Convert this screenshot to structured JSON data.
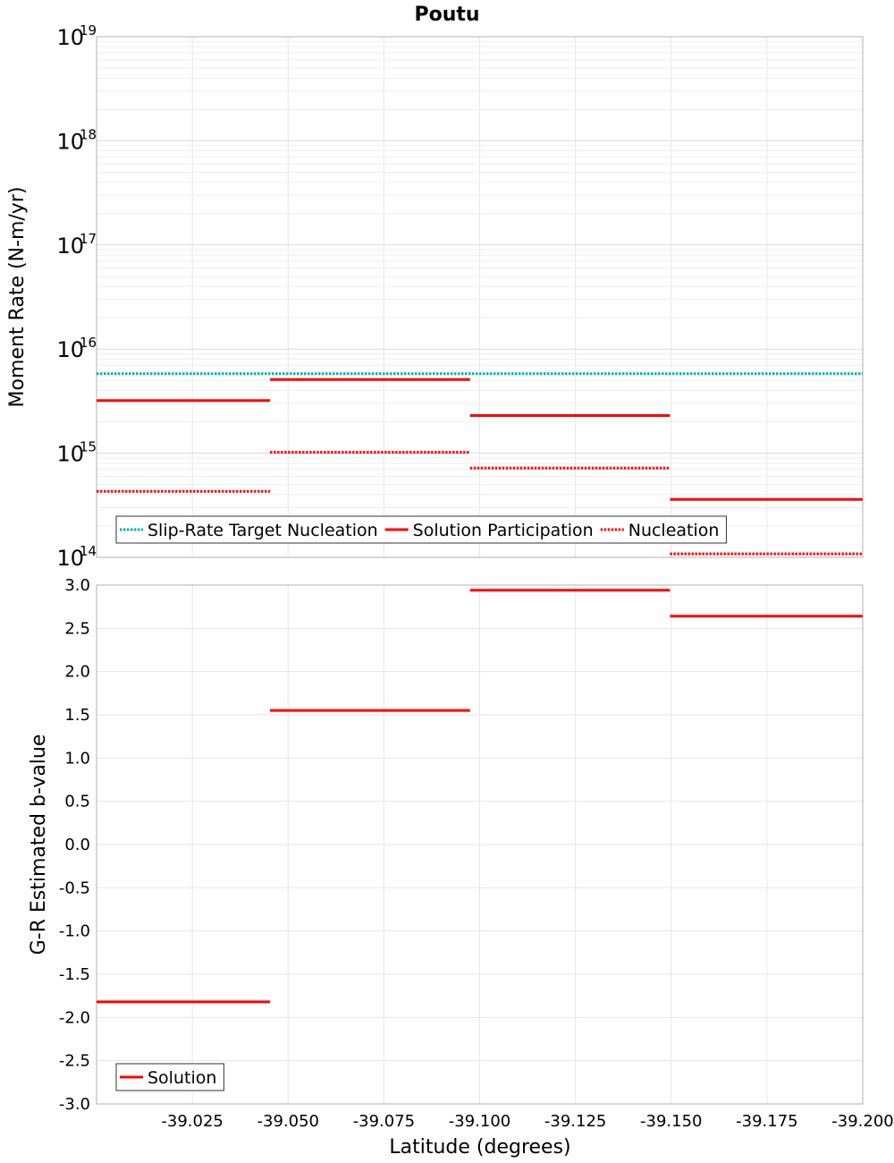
{
  "chart_data": {
    "title": "Poutu",
    "xlabel": "Latitude (degrees)",
    "xlim": [
      -39.0,
      -39.2
    ],
    "xticks": [
      -39.025,
      -39.05,
      -39.075,
      -39.1,
      -39.125,
      -39.15,
      -39.175,
      -39.2
    ],
    "xtick_labels": [
      "-39.025",
      "-39.050",
      "-39.075",
      "-39.100",
      "-39.125",
      "-39.150",
      "-39.175",
      "-39.200"
    ],
    "panels": [
      {
        "type": "line",
        "yscale": "log",
        "ylabel": "Moment Rate (N-m/yr)",
        "ylim": [
          100000000000000.0,
          1e+19
        ],
        "yticks": [
          {
            "value": 100000000000000.0,
            "base": "10",
            "exp": "14"
          },
          {
            "value": 1000000000000000.0,
            "base": "10",
            "exp": "15"
          },
          {
            "value": 1e+16,
            "base": "10",
            "exp": "16"
          },
          {
            "value": 1e+17,
            "base": "10",
            "exp": "17"
          },
          {
            "value": 1e+18,
            "base": "10",
            "exp": "18"
          },
          {
            "value": 1e+19,
            "base": "10",
            "exp": "19"
          }
        ],
        "grid": true,
        "legend": {
          "placement": "bottom-left",
          "entries": [
            "Slip-Rate Target Nucleation",
            "Solution Participation",
            "Nucleation"
          ]
        },
        "series": [
          {
            "name": "Slip-Rate Target Nucleation",
            "color": "#00b4b4",
            "dash": "dotted",
            "segments": [
              {
                "x": [
                  -39.0,
                  -39.2
                ],
                "y": 5800000000000000.0
              }
            ]
          },
          {
            "name": "Solution Participation",
            "color": "#ff0000",
            "dash": "solid",
            "segments": [
              {
                "x": [
                  -39.0,
                  -39.0453
                ],
                "y": 3200000000000000.0
              },
              {
                "x": [
                  -39.0453,
                  -39.0975
                ],
                "y": 5100000000000000.0
              },
              {
                "x": [
                  -39.0975,
                  -39.1497
                ],
                "y": 2300000000000000.0
              },
              {
                "x": [
                  -39.1497,
                  -39.2
                ],
                "y": 360000000000000.0
              }
            ]
          },
          {
            "name": "Nucleation",
            "color": "#ff0000",
            "dash": "dotted",
            "segments": [
              {
                "x": [
                  -39.0,
                  -39.0453
                ],
                "y": 430000000000000.0
              },
              {
                "x": [
                  -39.0453,
                  -39.0975
                ],
                "y": 1020000000000000.0
              },
              {
                "x": [
                  -39.0975,
                  -39.1497
                ],
                "y": 720000000000000.0
              },
              {
                "x": [
                  -39.1497,
                  -39.2
                ],
                "y": 108000000000000.0
              }
            ]
          }
        ]
      },
      {
        "type": "line",
        "yscale": "linear",
        "ylabel": "G-R Estimated b-value",
        "ylim": [
          -3.0,
          3.0
        ],
        "yticks": [
          3.0,
          2.5,
          2.0,
          1.5,
          1.0,
          0.5,
          0.0,
          -0.5,
          -1.0,
          -1.5,
          -2.0,
          -2.5,
          -3.0
        ],
        "ytick_labels": [
          "3.0",
          "2.5",
          "2.0",
          "1.5",
          "1.0",
          "0.5",
          "0.0",
          "-0.5",
          "-1.0",
          "-1.5",
          "-2.0",
          "-2.5",
          "-3.0"
        ],
        "grid": true,
        "legend": {
          "placement": "bottom-left",
          "entries": [
            "Solution"
          ]
        },
        "series": [
          {
            "name": "Solution",
            "color": "#ff0000",
            "dash": "solid",
            "segments": [
              {
                "x": [
                  -39.0,
                  -39.0453
                ],
                "y": -1.82
              },
              {
                "x": [
                  -39.0453,
                  -39.0975
                ],
                "y": 1.55
              },
              {
                "x": [
                  -39.0975,
                  -39.1497
                ],
                "y": 2.94
              },
              {
                "x": [
                  -39.1497,
                  -39.2
                ],
                "y": 2.64
              }
            ]
          }
        ]
      }
    ]
  }
}
